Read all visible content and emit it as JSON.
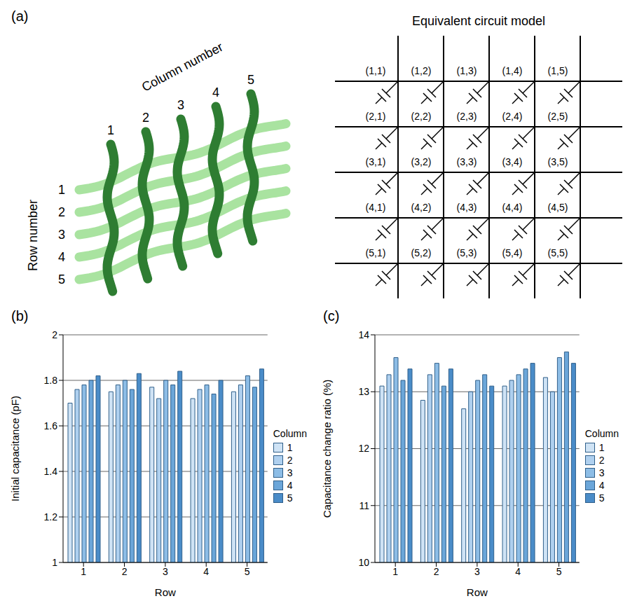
{
  "diagram": {
    "panel_label": "(a)",
    "column_axis_title": "Column number",
    "row_axis_title": "Row number",
    "column_numbers": [
      "1",
      "2",
      "3",
      "4",
      "5"
    ],
    "row_numbers": [
      "1",
      "2",
      "3",
      "4",
      "5"
    ],
    "circuit_title": "Equivalent circuit model",
    "cells": [
      [
        "(1,1)",
        "(1,2)",
        "(1,3)",
        "(1,4)",
        "(1,5)"
      ],
      [
        "(2,1)",
        "(2,2)",
        "(2,3)",
        "(2,4)",
        "(2,5)"
      ],
      [
        "(3,1)",
        "(3,2)",
        "(3,3)",
        "(3,4)",
        "(3,5)"
      ],
      [
        "(4,1)",
        "(4,2)",
        "(4,3)",
        "(4,4)",
        "(4,5)"
      ],
      [
        "(5,1)",
        "(5,2)",
        "(5,3)",
        "(5,4)",
        "(5,5)"
      ]
    ]
  },
  "chart_data": [
    {
      "panel_label": "(b)",
      "type": "bar",
      "x_label": "Row",
      "y_label": "Initial capacitance (pF)",
      "legend_title": "Column",
      "legend": "right",
      "categories": [
        "1",
        "2",
        "3",
        "4",
        "5"
      ],
      "ylim": [
        1,
        2
      ],
      "yticks": [
        1,
        1.2,
        1.4,
        1.6,
        1.8,
        2
      ],
      "grid": true,
      "series": [
        {
          "name": "1",
          "color": "#cfe3f5",
          "values": [
            1.7,
            1.75,
            1.77,
            1.72,
            1.75
          ]
        },
        {
          "name": "2",
          "color": "#afd0ef",
          "values": [
            1.76,
            1.78,
            1.72,
            1.76,
            1.78
          ]
        },
        {
          "name": "3",
          "color": "#8dbde6",
          "values": [
            1.78,
            1.8,
            1.8,
            1.78,
            1.82
          ]
        },
        {
          "name": "4",
          "color": "#6ba6d9",
          "values": [
            1.8,
            1.76,
            1.78,
            1.74,
            1.77
          ]
        },
        {
          "name": "5",
          "color": "#4a8cc8",
          "values": [
            1.82,
            1.83,
            1.84,
            1.8,
            1.85
          ]
        }
      ]
    },
    {
      "panel_label": "(c)",
      "type": "bar",
      "x_label": "Row",
      "y_label": "Capacitance change ratio (%)",
      "legend_title": "Column",
      "legend": "right",
      "categories": [
        "1",
        "2",
        "3",
        "4",
        "5"
      ],
      "ylim": [
        10,
        14
      ],
      "yticks": [
        10,
        11,
        12,
        13,
        14
      ],
      "grid": true,
      "series": [
        {
          "name": "1",
          "color": "#cfe3f5",
          "values": [
            13.1,
            12.85,
            12.7,
            13.1,
            13.25
          ]
        },
        {
          "name": "2",
          "color": "#afd0ef",
          "values": [
            13.3,
            13.3,
            13.0,
            13.2,
            13.0
          ]
        },
        {
          "name": "3",
          "color": "#8dbde6",
          "values": [
            13.6,
            13.5,
            13.2,
            13.3,
            13.6
          ]
        },
        {
          "name": "4",
          "color": "#6ba6d9",
          "values": [
            13.2,
            13.1,
            13.3,
            13.4,
            13.7
          ]
        },
        {
          "name": "5",
          "color": "#4a8cc8",
          "values": [
            13.4,
            13.4,
            13.1,
            13.5,
            13.5
          ]
        }
      ]
    }
  ]
}
